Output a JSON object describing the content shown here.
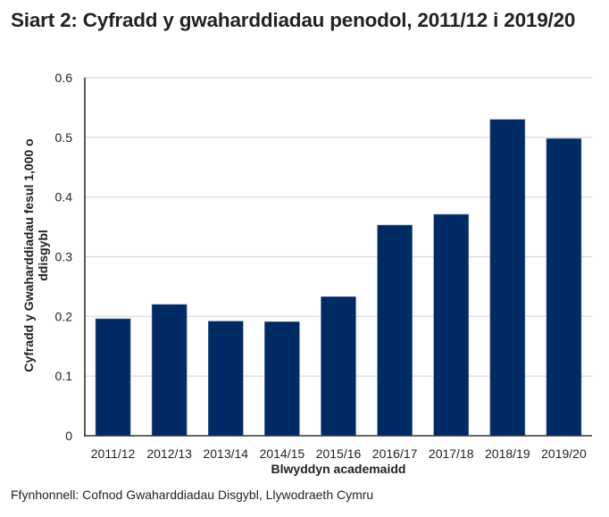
{
  "title": "Siart 2: Cyfradd y gwaharddiadau penodol, 2011/12 i 2019/20",
  "source": "Ffynhonnell: Cofnod Gwaharddiadau Disgybl, Llywodraeth Cymru",
  "colors": {
    "bar": "#002a64",
    "grid": "#d9d9d9",
    "axis": "#333333",
    "text": "#222222"
  },
  "chart_data": {
    "type": "bar",
    "title": "Siart 2: Cyfradd y gwaharddiadau penodol, 2011/12 i 2019/20",
    "xlabel": "Blwyddyn academaidd",
    "ylabel": "Cyfradd y Gwaharddiadau fesul 1,000 o ddisgybl",
    "ylabel_lines": [
      "Cyfradd y Gwaharddiadau fesul 1,000 o",
      "ddisgybl"
    ],
    "categories": [
      "2011/12",
      "2012/13",
      "2013/14",
      "2014/15",
      "2015/16",
      "2016/17",
      "2017/18",
      "2018/19",
      "2019/20"
    ],
    "values": [
      0.196,
      0.22,
      0.192,
      0.191,
      0.233,
      0.353,
      0.371,
      0.53,
      0.498
    ],
    "ylim": [
      0,
      0.6
    ],
    "yticks": [
      0,
      0.1,
      0.2,
      0.3,
      0.4,
      0.5,
      0.6
    ],
    "ytick_labels": [
      "0",
      "0.1",
      "0.2",
      "0.3",
      "0.4",
      "0.5",
      "0.6"
    ],
    "grid": true,
    "legend": null
  }
}
